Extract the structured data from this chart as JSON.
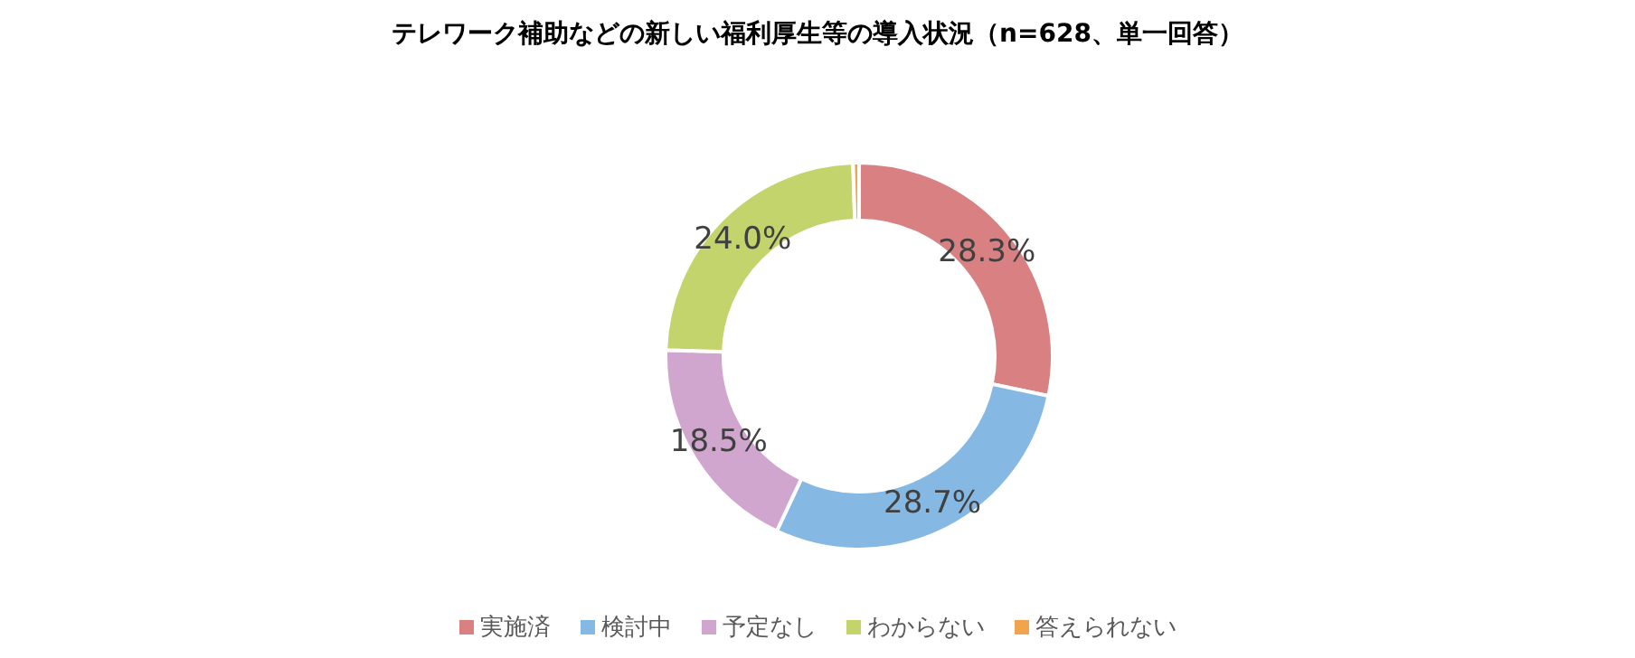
{
  "chart_data": {
    "type": "donut",
    "title": "テレワーク補助などの新しい福利厚生等の導入状況（n=628、単一回答）",
    "categories": [
      "実施済",
      "検討中",
      "予定なし",
      "わからない",
      "答えられない"
    ],
    "values": [
      28.3,
      28.7,
      18.5,
      24.0,
      0.5
    ],
    "colors": [
      "#d98083",
      "#86b8e4",
      "#d0a6cf",
      "#c4d46d",
      "#f0a54d"
    ],
    "value_labels": [
      "28.3%",
      "28.7%",
      "18.5%",
      "24.0%",
      null
    ],
    "legend": "bottom"
  }
}
